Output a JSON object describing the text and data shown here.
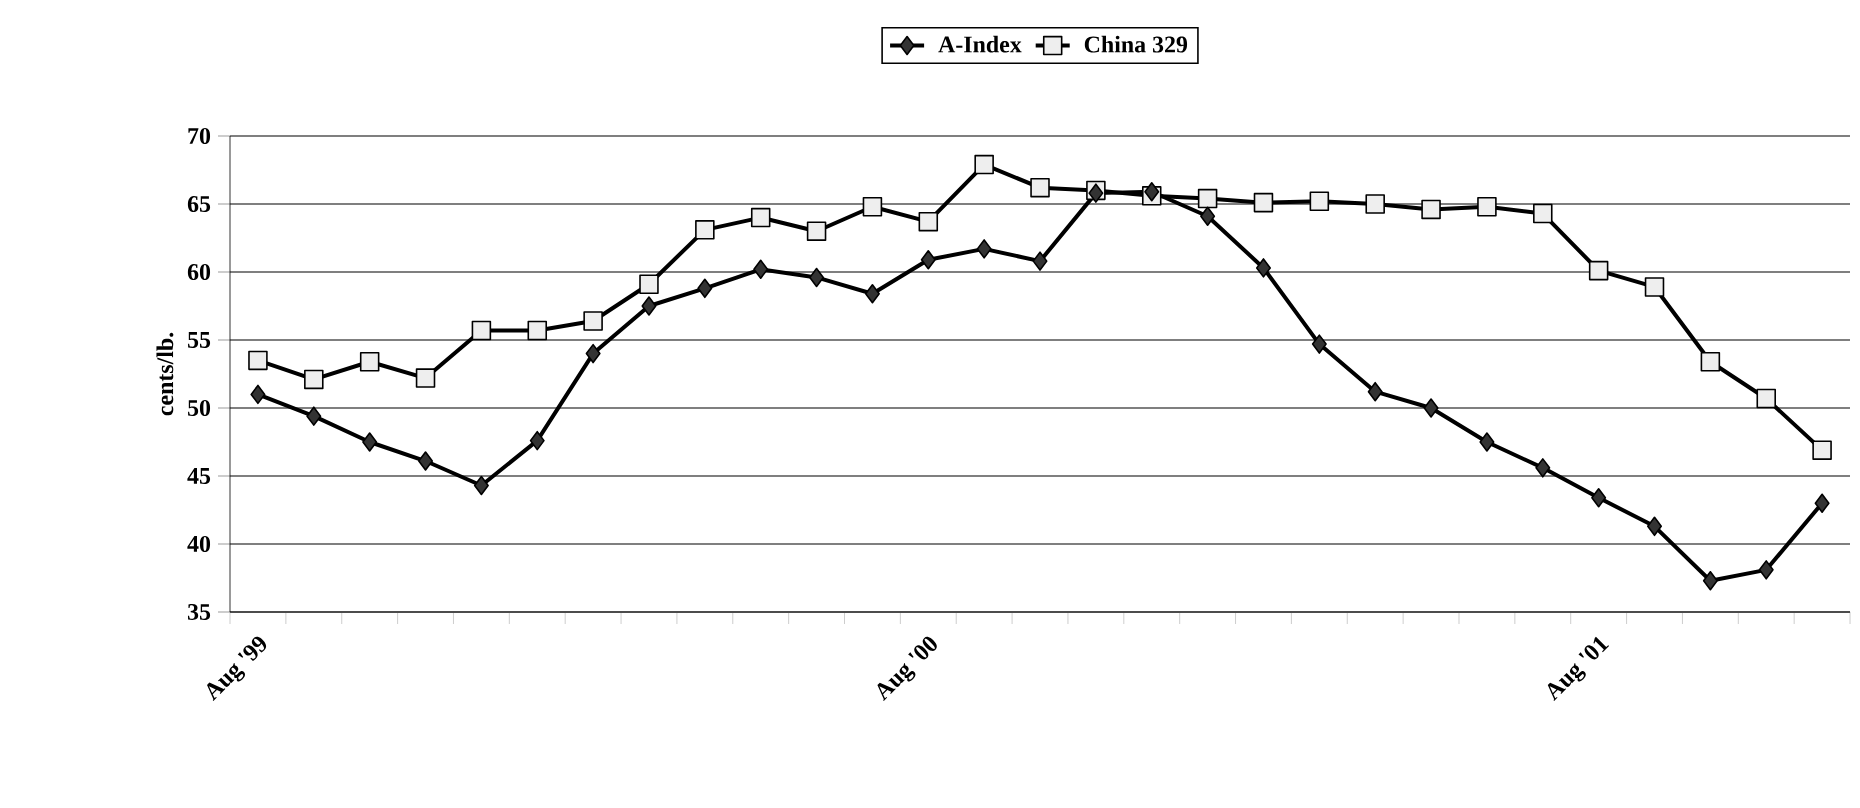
{
  "chart_data": {
    "type": "line",
    "ylabel": "cents/lb.",
    "categories": [
      "Aug '99",
      null,
      null,
      null,
      null,
      null,
      null,
      null,
      null,
      null,
      null,
      null,
      "Aug '00",
      null,
      null,
      null,
      null,
      null,
      null,
      null,
      null,
      null,
      null,
      null,
      "Aug '01",
      null,
      null,
      null,
      null
    ],
    "series": [
      {
        "name": "A-Index",
        "color": "#333333",
        "marker": "diamond",
        "values": [
          51.0,
          49.4,
          47.5,
          46.1,
          44.3,
          47.6,
          54.0,
          57.5,
          58.8,
          60.2,
          59.6,
          58.4,
          60.9,
          61.7,
          60.8,
          65.8,
          65.9,
          64.1,
          60.3,
          54.7,
          51.2,
          50.0,
          47.5,
          45.6,
          43.4,
          41.3,
          37.3,
          38.1,
          43.0
        ]
      },
      {
        "name": "China 329",
        "color": "#eeeeee",
        "marker": "square",
        "values": [
          53.5,
          52.1,
          53.4,
          52.2,
          55.7,
          55.7,
          56.4,
          59.1,
          63.1,
          64.0,
          63.0,
          64.8,
          63.7,
          67.9,
          66.2,
          66.0,
          65.6,
          65.4,
          65.1,
          65.2,
          65.0,
          64.6,
          64.8,
          64.3,
          60.1,
          58.9,
          53.4,
          50.7,
          46.9
        ]
      }
    ],
    "ylim": [
      35,
      70
    ],
    "yticks": [
      35,
      40,
      45,
      50,
      55,
      60,
      65,
      70
    ],
    "grid": "y",
    "legend": "top"
  }
}
